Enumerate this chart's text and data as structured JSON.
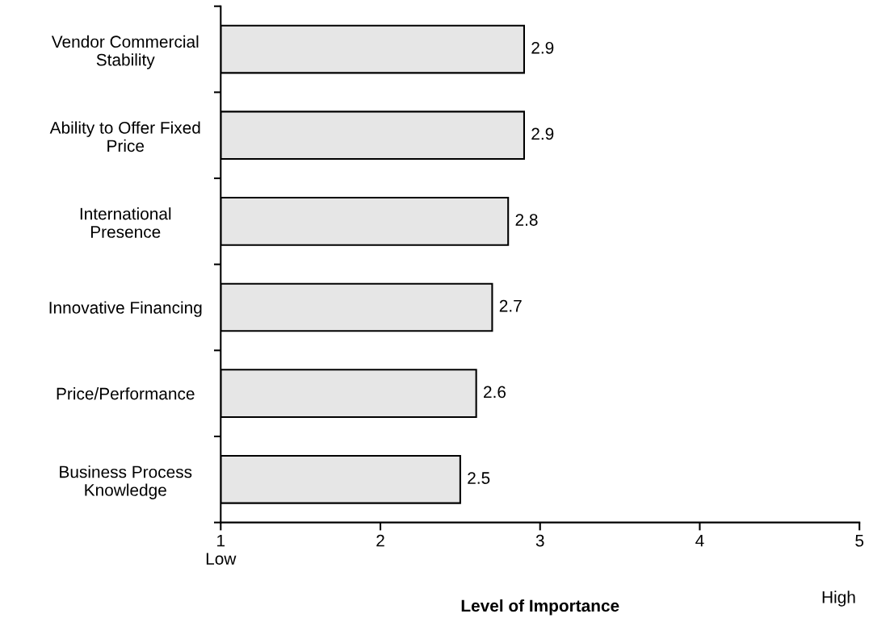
{
  "chart_data": {
    "type": "bar",
    "orientation": "horizontal",
    "categories": [
      "Vendor Commercial\nStability",
      "Ability to Offer Fixed\nPrice",
      "International\nPresence",
      "Innovative Financing",
      "Price/Performance",
      "Business Process\nKnowledge"
    ],
    "values": [
      2.9,
      2.9,
      2.8,
      2.7,
      2.6,
      2.5
    ],
    "color": "#e6e6e6",
    "xlim": [
      1,
      5
    ],
    "xticks": [
      {
        "value": 1,
        "label": "1\nLow"
      },
      2,
      3,
      4,
      5
    ],
    "xlabel": "Level of Importance",
    "annotations": [
      "High"
    ],
    "data_labels": true,
    "grid": false,
    "legend": false
  }
}
